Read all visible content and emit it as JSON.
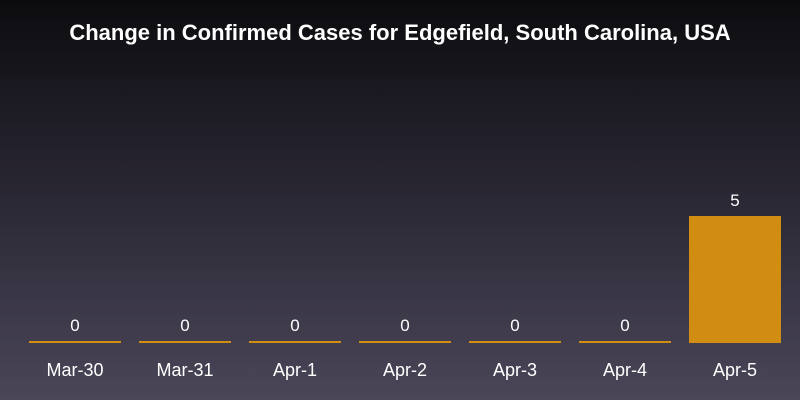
{
  "chart_data": {
    "type": "bar",
    "title": "Change in Confirmed Cases for Edgefield, South Carolina, USA",
    "categories": [
      "Mar-30",
      "Mar-31",
      "Apr-1",
      "Apr-2",
      "Apr-3",
      "Apr-4",
      "Apr-5"
    ],
    "values": [
      0,
      0,
      0,
      0,
      0,
      0,
      5
    ],
    "data_labels": [
      "0",
      "0",
      "0",
      "0",
      "0",
      "0",
      "5"
    ],
    "xlabel": "",
    "ylabel": "",
    "ylim": [
      0,
      5
    ],
    "grid": false,
    "legend": "none",
    "bar_color": "#d18c12",
    "text_color": "#ffffff"
  }
}
